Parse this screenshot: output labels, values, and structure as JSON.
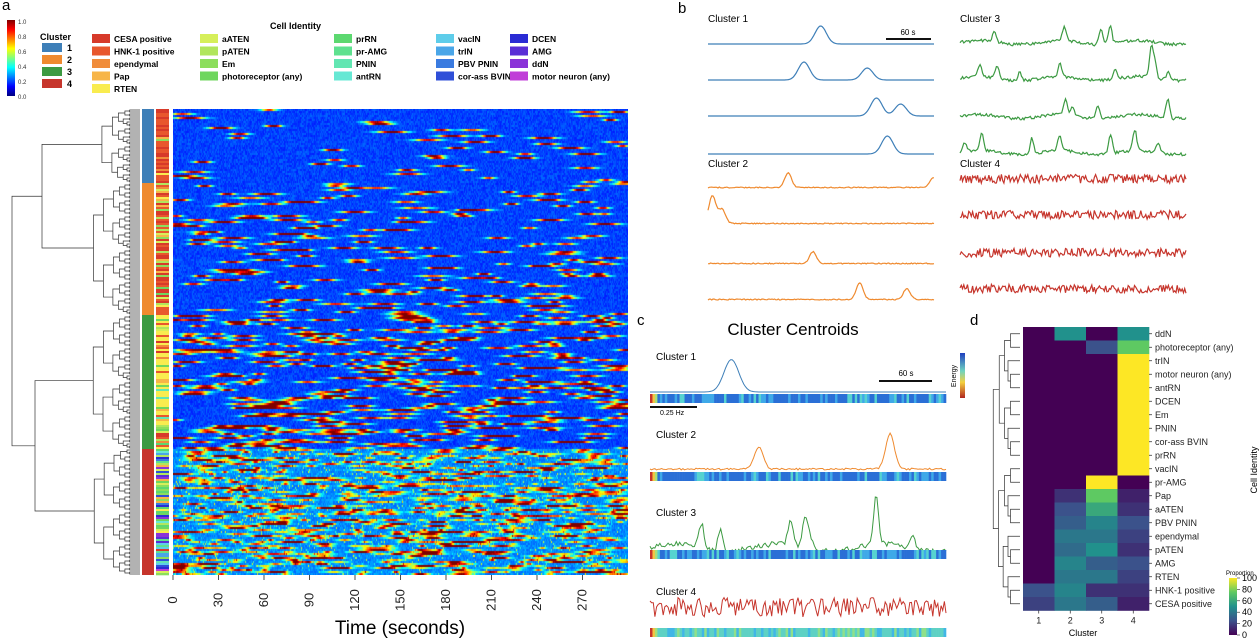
{
  "panel_labels": {
    "a": "a",
    "b": "b",
    "c": "c",
    "d": "d"
  },
  "colors": {
    "cluster1": "#3e7fb8",
    "cluster2": "#ef8a2f",
    "cluster3": "#3c9a42",
    "cluster4": "#c6352c",
    "black": "#111111"
  },
  "panel_a": {
    "colorbar": {
      "ticks": [
        "1.0",
        "0.8",
        "0.6",
        "0.4",
        "0.2",
        "0.0"
      ],
      "colormap": "jet"
    },
    "cluster_legend": {
      "title": "Cluster",
      "items": [
        {
          "label": "1",
          "color": "#3e7fb8"
        },
        {
          "label": "2",
          "color": "#ef8a2f"
        },
        {
          "label": "3",
          "color": "#3c9a42"
        },
        {
          "label": "4",
          "color": "#c6352c"
        }
      ]
    },
    "identity_legend": {
      "title": "Cell Identity",
      "items": [
        {
          "label": "CESA positive",
          "color": "#d73a2a"
        },
        {
          "label": "HNK-1 positive",
          "color": "#e8572d"
        },
        {
          "label": "ependymal",
          "color": "#f08c3a"
        },
        {
          "label": "Pap",
          "color": "#f7b548"
        },
        {
          "label": "RTEN",
          "color": "#f9ec4f"
        },
        {
          "label": "aATEN",
          "color": "#d6ef5a"
        },
        {
          "label": "pATEN",
          "color": "#b1e65c"
        },
        {
          "label": "Em",
          "color": "#8cde5c"
        },
        {
          "label": "photoreceptor (any)",
          "color": "#6fd65e"
        },
        {
          "label": "prRN",
          "color": "#5cd870"
        },
        {
          "label": "pr-AMG",
          "color": "#5ee18f"
        },
        {
          "label": "PNIN",
          "color": "#62e6b2"
        },
        {
          "label": "antRN",
          "color": "#66e8d4"
        },
        {
          "label": "vacIN",
          "color": "#5ecdea"
        },
        {
          "label": "trIN",
          "color": "#4aa6e8"
        },
        {
          "label": "PBV PNIN",
          "color": "#3a7be0"
        },
        {
          "label": "cor-ass BVIN",
          "color": "#2f4fd8"
        },
        {
          "label": "DCEN",
          "color": "#2a2bd4"
        },
        {
          "label": "AMG",
          "color": "#5a2ed6"
        },
        {
          "label": "ddN",
          "color": "#8a33d8"
        },
        {
          "label": "motor neuron (any)",
          "color": "#c03ed8"
        }
      ]
    },
    "x_ticks": [
      "0",
      "30",
      "60",
      "90",
      "120",
      "150",
      "180",
      "210",
      "240",
      "270"
    ],
    "x_label": "Time (seconds)"
  },
  "panel_b": {
    "scale_bar": "60 s",
    "groups": [
      {
        "title": "Cluster 1",
        "cluster": 1
      },
      {
        "title": "Cluster 2",
        "cluster": 2
      },
      {
        "title": "Cluster 3",
        "cluster": 3
      },
      {
        "title": "Cluster 4",
        "cluster": 4
      }
    ]
  },
  "panel_c": {
    "title": "Cluster Centroids",
    "scale_bar": "60 s",
    "freq_bar": "0.25 Hz",
    "energy_label": "Energy",
    "rows": [
      {
        "title": "Cluster 1",
        "cluster": 1
      },
      {
        "title": "Cluster 2",
        "cluster": 2
      },
      {
        "title": "Cluster 3",
        "cluster": 3
      },
      {
        "title": "Cluster 4",
        "cluster": 4
      }
    ]
  },
  "chart_data": [
    {
      "type": "heatmap",
      "panel": "d",
      "title": "",
      "xlabel": "Cluster",
      "ylabel": "Cell Identity",
      "x": [
        "1",
        "2",
        "3",
        "4"
      ],
      "y": [
        "ddN",
        "photoreceptor (any)",
        "trIN",
        "motor neuron (any)",
        "antRN",
        "DCEN",
        "Em",
        "PNIN",
        "cor-ass BVIN",
        "prRN",
        "vacIN",
        "pr-AMG",
        "Pap",
        "aATEN",
        "PBV PNIN",
        "ependymal",
        "pATEN",
        "AMG",
        "RTEN",
        "HNK-1 positive",
        "CESA positive"
      ],
      "values": [
        [
          0,
          50,
          0,
          50
        ],
        [
          0,
          0,
          25,
          75
        ],
        [
          0,
          0,
          0,
          100
        ],
        [
          0,
          0,
          0,
          100
        ],
        [
          0,
          0,
          0,
          100
        ],
        [
          0,
          0,
          0,
          100
        ],
        [
          0,
          0,
          0,
          100
        ],
        [
          0,
          0,
          0,
          100
        ],
        [
          0,
          0,
          0,
          100
        ],
        [
          0,
          0,
          0,
          100
        ],
        [
          0,
          0,
          0,
          100
        ],
        [
          0,
          0,
          100,
          0
        ],
        [
          0,
          15,
          75,
          10
        ],
        [
          0,
          25,
          60,
          15
        ],
        [
          0,
          30,
          45,
          25
        ],
        [
          0,
          40,
          40,
          20
        ],
        [
          0,
          35,
          50,
          15
        ],
        [
          0,
          45,
          30,
          25
        ],
        [
          0,
          40,
          40,
          20
        ],
        [
          25,
          45,
          15,
          15
        ],
        [
          20,
          40,
          30,
          10
        ]
      ],
      "colorbar": {
        "title": "Proportion",
        "ticks": [
          0,
          20,
          40,
          60,
          80,
          100
        ],
        "colormap": "viridis"
      }
    }
  ]
}
